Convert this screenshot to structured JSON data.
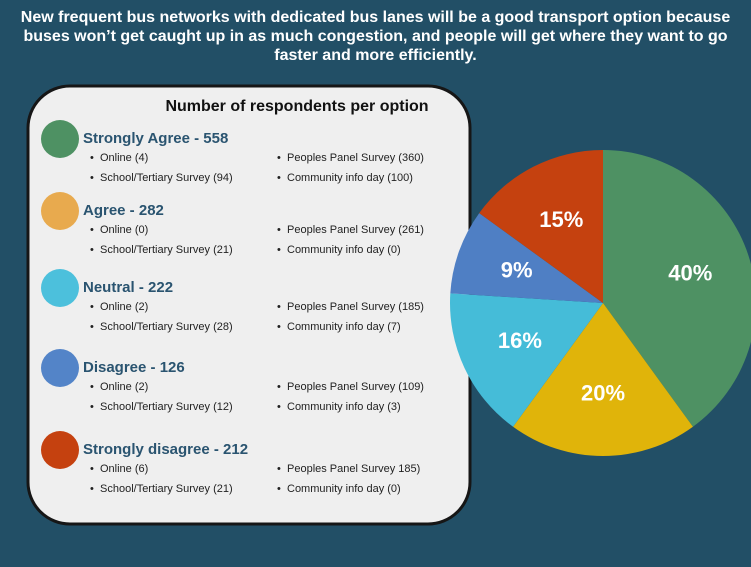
{
  "chart_data": {
    "type": "pie",
    "title": "New frequent bus networks with dedicated bus lanes will be a good transport option because buses won’t get caught up in as much congestion, and people will get where they want to go faster and more efficiently.",
    "subtitle": "Number of respondents per option",
    "categories": [
      "Strongly Agree - 558",
      "Agree - 282",
      "Neutral - 222",
      "Disagree - 126",
      "Strongly disagree - 212"
    ],
    "values": [
      40,
      20,
      16,
      9,
      15
    ],
    "value_labels": [
      "40%",
      "20%",
      "16%",
      "9%",
      "15%"
    ],
    "colors": [
      "#4e9163",
      "#e0b40a",
      "#45bcd8",
      "#4f7fc4",
      "#c5410f"
    ],
    "legend_colors": [
      "#4e9163",
      "#e8aa4e",
      "#4cc0dc",
      "#5384c8",
      "#c5410f"
    ],
    "breakdown": [
      [
        "Online (4)",
        "School/Tertiary Survey (94)",
        "Peoples Panel Survey (360)",
        "Community info day (100)"
      ],
      [
        "Online (0)",
        "School/Tertiary Survey (21)",
        "Peoples Panel Survey (261)",
        "Community info day (0)"
      ],
      [
        "Online (2)",
        "School/Tertiary Survey (28)",
        "Peoples Panel Survey (185)",
        "Community info day (7)"
      ],
      [
        "Online (2)",
        "School/Tertiary Survey (12)",
        "Peoples Panel Survey (109)",
        "Community info day (3)"
      ],
      [
        "Online (6)",
        "School/Tertiary Survey (21)",
        "Peoples Panel Survey 185)",
        "Community info day (0)"
      ]
    ]
  }
}
